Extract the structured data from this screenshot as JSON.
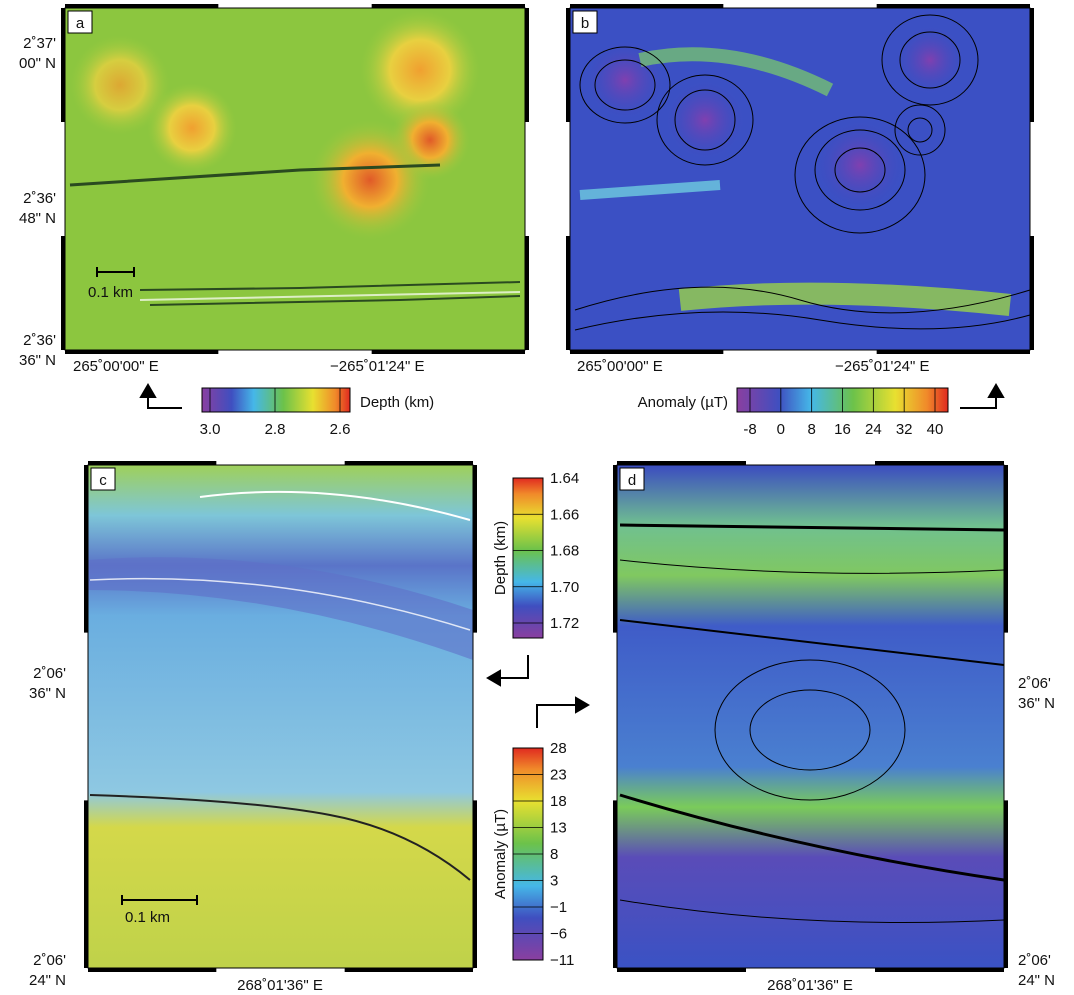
{
  "panels": [
    {
      "label": "a",
      "lat_labels": [
        [
          "2˚37'",
          "00\" N"
        ],
        [
          "2˚36'",
          "48\" N"
        ],
        [
          "2˚36'",
          "36\" N"
        ]
      ],
      "lon_labels": [
        "265˚00'00\" E",
        "−265˚01'24\" E"
      ],
      "scale_bar": "0.1 km"
    },
    {
      "label": "b",
      "lon_labels": [
        "265˚00'00\" E",
        "−265˚01'24\" E"
      ]
    },
    {
      "label": "c",
      "lat_labels": [
        [
          "2˚06'",
          "36\" N"
        ],
        [
          "2˚06'",
          "24\" N"
        ]
      ],
      "lon_labels": [
        "268˚01'36\" E"
      ],
      "scale_bar": "0.1 km"
    },
    {
      "label": "d",
      "lat_labels": [
        [
          "2˚06'",
          "36\" N"
        ],
        [
          "2˚06'",
          "24\" N"
        ]
      ],
      "lon_labels": [
        "268˚01'36\" E"
      ]
    }
  ],
  "colorbars": [
    {
      "title": "Depth (km)",
      "ticks": [
        "3.0",
        "2.8",
        "2.6"
      ]
    },
    {
      "title": "Anomaly (µT)",
      "ticks": [
        "-8",
        "0",
        "8",
        "16",
        "24",
        "32",
        "40"
      ]
    },
    {
      "title": "Depth (km)",
      "ticks": [
        "1.64",
        "1.66",
        "1.68",
        "1.70",
        "1.72"
      ]
    },
    {
      "title": "Anomaly (µT)",
      "ticks": [
        "28",
        "23",
        "18",
        "13",
        "8",
        "3",
        "−1",
        "−6",
        "−11"
      ]
    }
  ]
}
